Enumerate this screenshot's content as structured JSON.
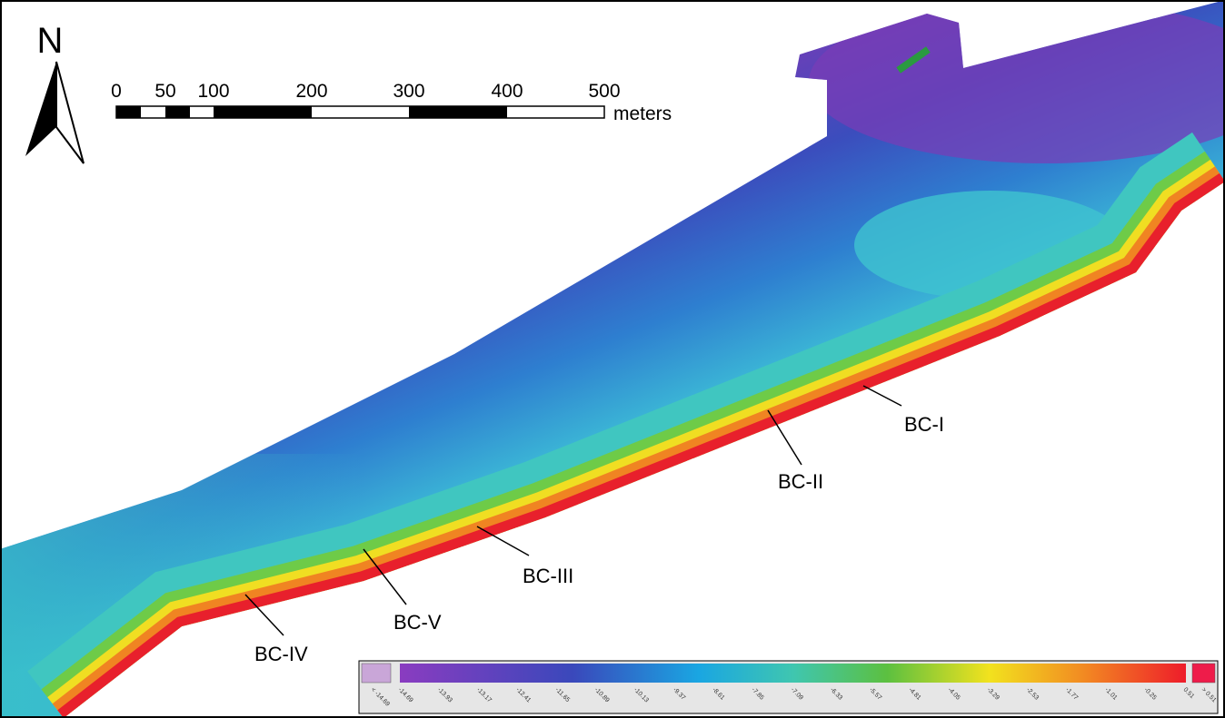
{
  "north_arrow": {
    "label": "N"
  },
  "scale_bar": {
    "labels": [
      "0",
      "50",
      "100",
      "200",
      "300",
      "400",
      "500"
    ],
    "unit": "meters"
  },
  "site_labels": [
    "BC-I",
    "BC-II",
    "BC-III",
    "BC-V",
    "BC-IV"
  ],
  "legend": {
    "labels": [
      "< -14.69",
      "-14.69",
      "-13.93",
      "-13.17",
      "-12.41",
      "-11.65",
      "-10.89",
      "-10.13",
      "-9.37",
      "-8.61",
      "-7.85",
      "-7.09",
      "-6.33",
      "-5.57",
      "-4.81",
      "-4.05",
      "-3.29",
      "-2.53",
      "-1.77",
      "-1.01",
      "-0.25",
      "0.51",
      "> 0.51"
    ]
  }
}
